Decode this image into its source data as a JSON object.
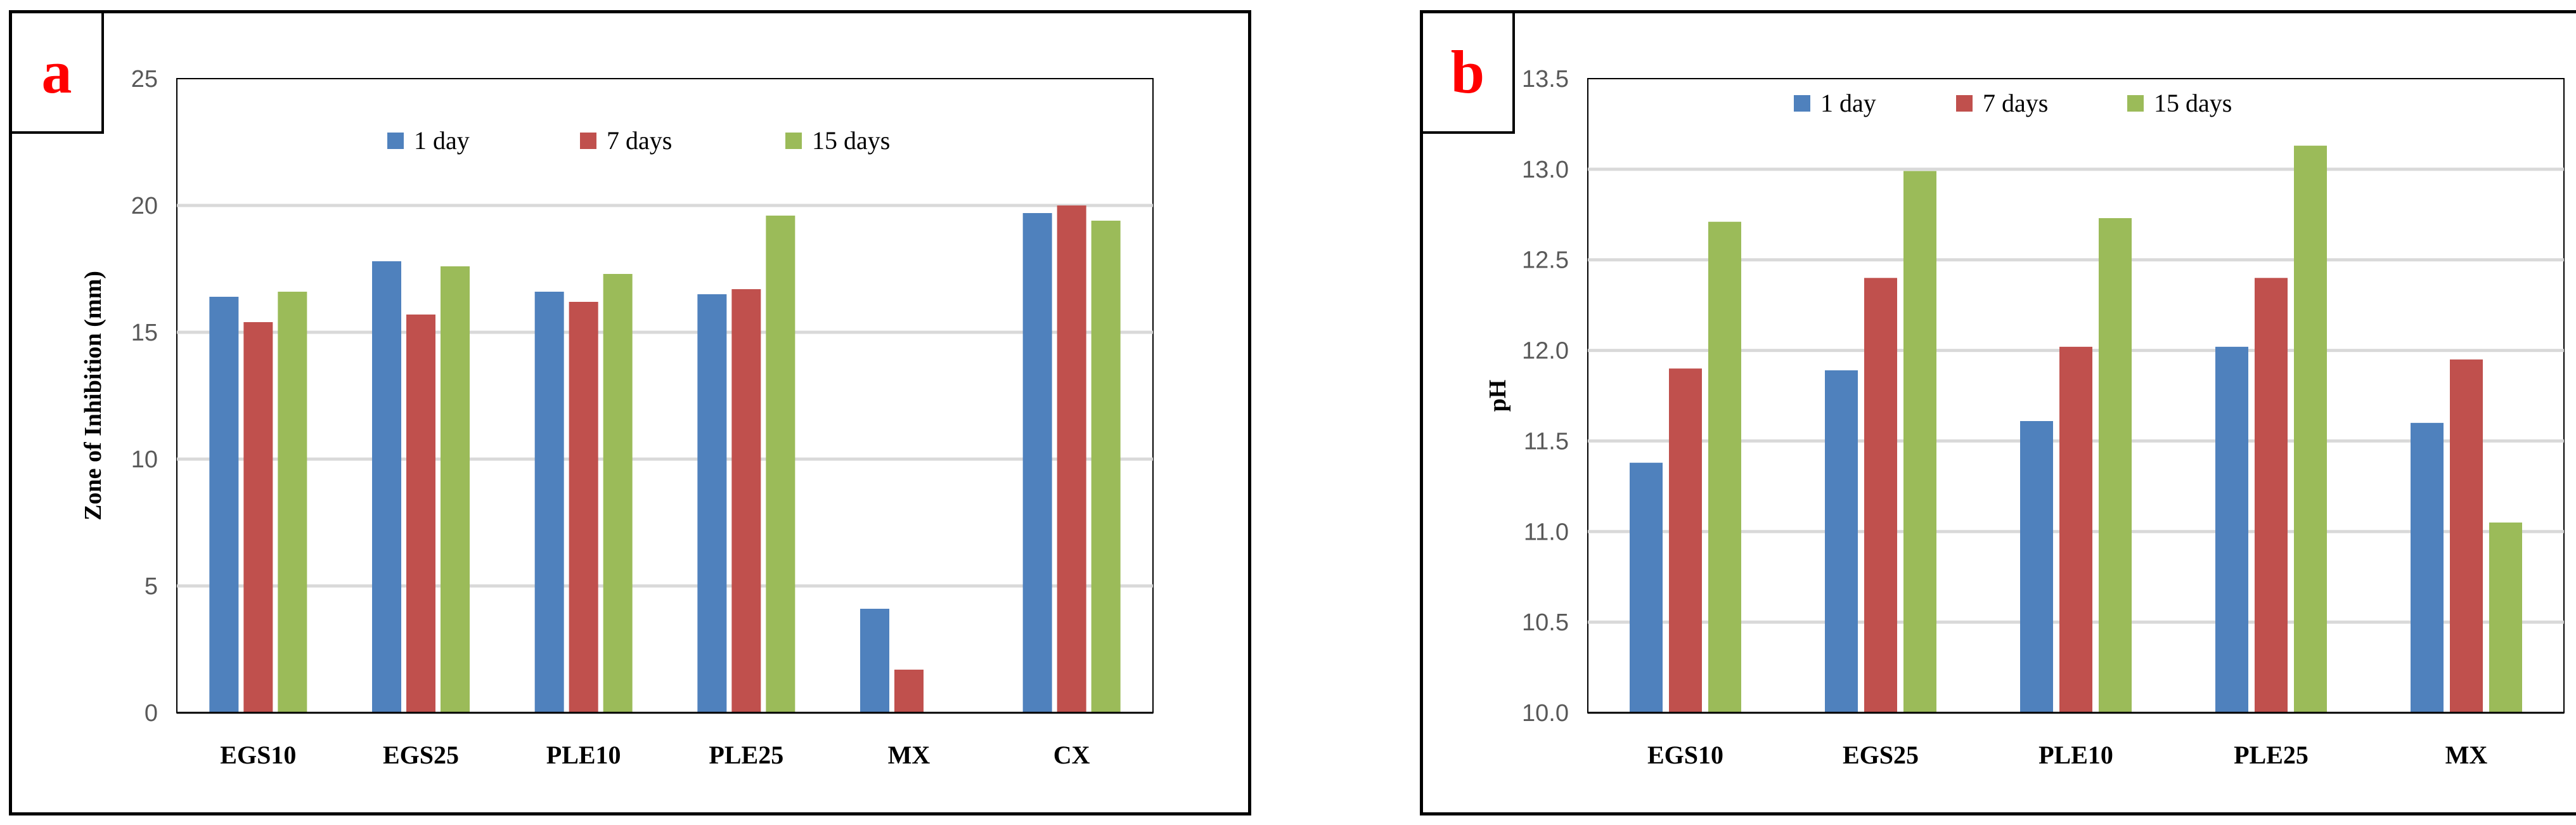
{
  "chart_data": [
    {
      "panel": "a",
      "type": "bar",
      "title": "",
      "xlabel": "",
      "ylabel": "Zone of Inhibition (mm)",
      "ylim": [
        0,
        25
      ],
      "yticks": [
        0,
        5,
        10,
        15,
        20,
        25
      ],
      "grid": true,
      "legend_position": "top-center",
      "categories": [
        "EGS10",
        "EGS25",
        "PLE10",
        "PLE25",
        "MX",
        "CX"
      ],
      "series": [
        {
          "name": "1 day",
          "color": "#4F81BD",
          "values": [
            16.4,
            17.8,
            16.6,
            16.5,
            4.1,
            19.7
          ]
        },
        {
          "name": "7 days",
          "color": "#C0504D",
          "values": [
            15.4,
            15.7,
            16.2,
            16.7,
            1.7,
            20.0
          ]
        },
        {
          "name": "15 days",
          "color": "#9BBB59",
          "values": [
            16.6,
            17.6,
            17.3,
            19.6,
            0,
            19.4
          ]
        }
      ]
    },
    {
      "panel": "b",
      "type": "bar",
      "title": "",
      "xlabel": "",
      "ylabel": "pH",
      "ylim": [
        10.0,
        13.5
      ],
      "yticks": [
        "10.0",
        "10.5",
        "11.0",
        "11.5",
        "12.0",
        "12.5",
        "13.0",
        "13.5"
      ],
      "grid": true,
      "legend_position": "top-center",
      "categories": [
        "EGS10",
        "EGS25",
        "PLE10",
        "PLE25",
        "MX"
      ],
      "series": [
        {
          "name": "1 day",
          "color": "#4F81BD",
          "values": [
            11.38,
            11.89,
            11.61,
            12.02,
            11.6
          ]
        },
        {
          "name": "7 days",
          "color": "#C0504D",
          "values": [
            11.9,
            12.4,
            12.02,
            12.4,
            11.95
          ]
        },
        {
          "name": "15 days",
          "color": "#9BBB59",
          "values": [
            12.71,
            12.99,
            12.73,
            13.13,
            11.05
          ]
        }
      ]
    }
  ]
}
